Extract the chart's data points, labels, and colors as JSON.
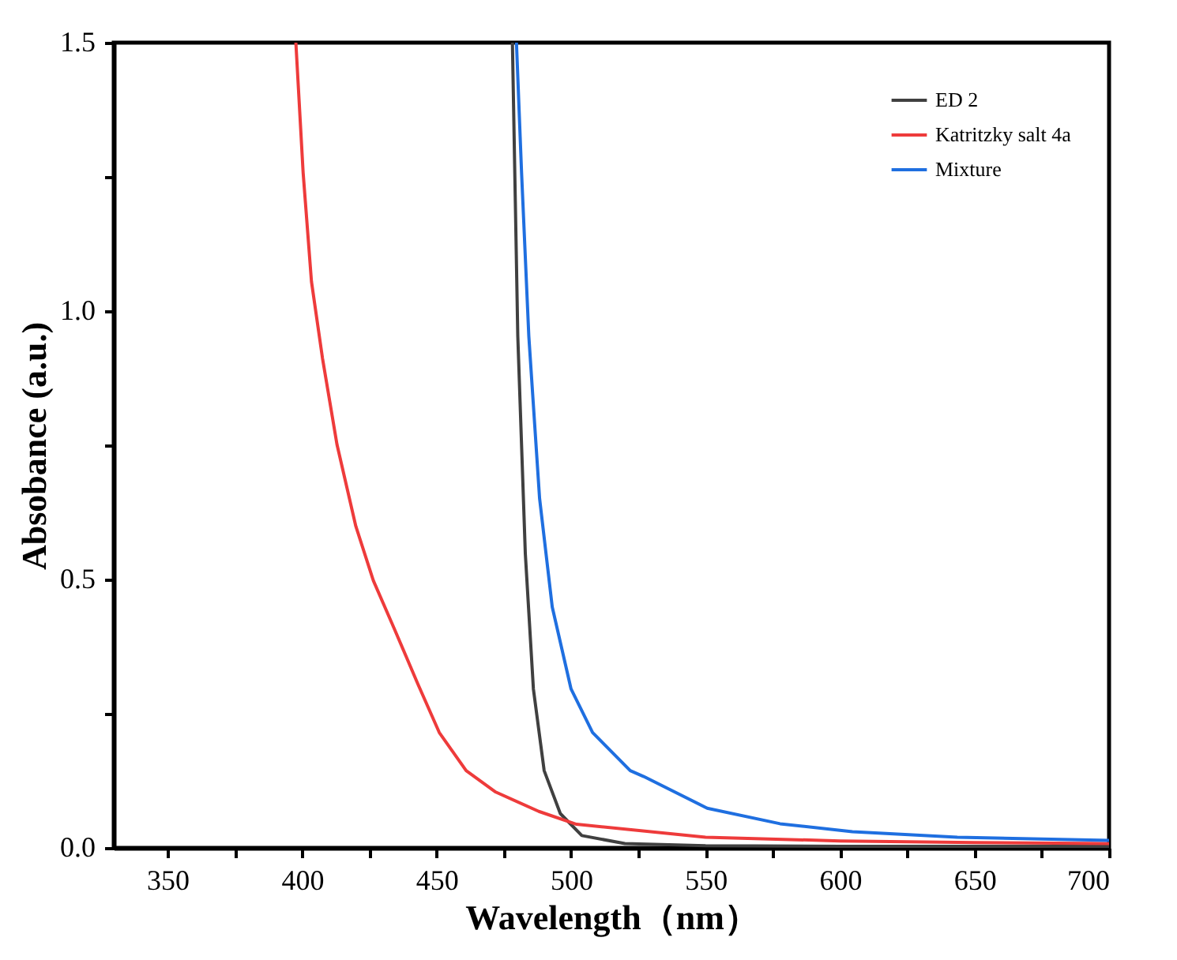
{
  "chart_data": {
    "type": "line",
    "xlabel": "Wavelength（nm）",
    "ylabel": "Absobance (a.u.)",
    "xlim": [
      330,
      700
    ],
    "ylim": [
      0,
      1.5
    ],
    "xticks": [
      350,
      {
        "value": 375,
        "label": null
      },
      400,
      {
        "value": 425,
        "label": null
      },
      450,
      {
        "value": 475,
        "label": null
      },
      500,
      {
        "value": 525,
        "label": null
      },
      550,
      {
        "value": 575,
        "label": null
      },
      600,
      {
        "value": 625,
        "label": null
      },
      650,
      {
        "value": 675,
        "label": null
      },
      700
    ],
    "yticks": [
      {
        "value": 0,
        "label": "0.0"
      },
      {
        "value": 0.25,
        "label": null
      },
      {
        "value": 0.5,
        "label": "0.5"
      },
      {
        "value": 0.75,
        "label": null
      },
      {
        "value": 1.0,
        "label": "1.0"
      },
      {
        "value": 1.25,
        "label": null
      },
      {
        "value": 1.5,
        "label": "1.5"
      }
    ],
    "grid": false,
    "legend": "top right",
    "line_style": "solid",
    "marker": "none",
    "series": [
      {
        "name": "ED 2",
        "color": "#404040",
        "x": [
          478.2,
          480.2,
          483,
          486,
          490,
          496,
          504,
          520,
          550,
          600,
          650,
          700
        ],
        "values": [
          1.5,
          0.953,
          0.548,
          0.296,
          0.144,
          0.064,
          0.023,
          0.008,
          0.004,
          0.003,
          0.003,
          0.003
        ]
      },
      {
        "name": "Katritzky salt 4a",
        "color": "#ee3b3b",
        "x": [
          397.7,
          400.4,
          403.5,
          407.6,
          413,
          420,
          426.5,
          434.3,
          443,
          451,
          461,
          472,
          488,
          502,
          550,
          600,
          650,
          700
        ],
        "values": [
          1.5,
          1.258,
          1.055,
          0.912,
          0.751,
          0.599,
          0.498,
          0.408,
          0.306,
          0.215,
          0.144,
          0.104,
          0.068,
          0.044,
          0.02,
          0.013,
          0.01,
          0.008
        ]
      },
      {
        "name": "Mixture",
        "color": "#1f6fe0",
        "x": [
          479.7,
          481.6,
          484.3,
          488.3,
          493,
          500,
          508,
          522,
          527,
          550.6,
          577.7,
          604.6,
          643.6,
          700
        ],
        "values": [
          1.5,
          1.258,
          0.953,
          0.651,
          0.449,
          0.296,
          0.215,
          0.144,
          0.133,
          0.074,
          0.045,
          0.03,
          0.02,
          0.014
        ]
      }
    ]
  }
}
